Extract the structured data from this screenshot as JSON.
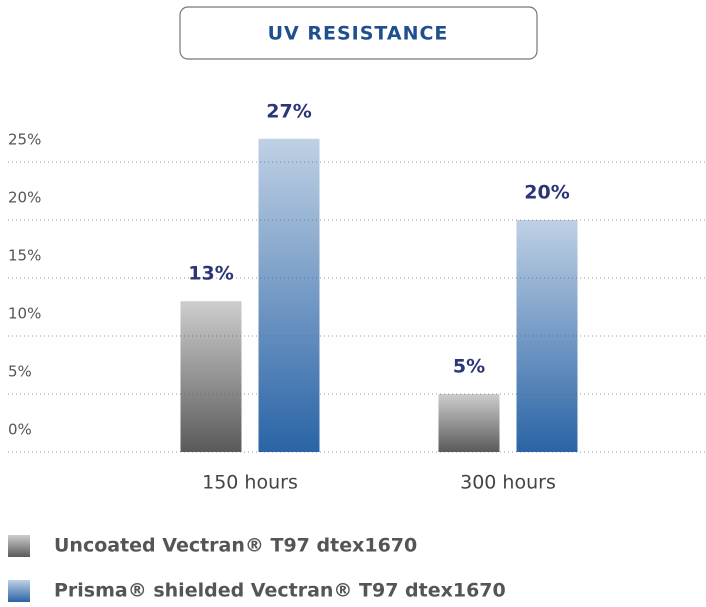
{
  "chart_data": {
    "type": "bar",
    "title": "UV RESISTANCE",
    "categories": [
      "150 hours",
      "300 hours"
    ],
    "series": [
      {
        "name": "Uncoated Vectran® T97 dtex1670",
        "color": "#5a5a5a",
        "values": [
          13,
          5
        ],
        "value_labels": [
          "13%",
          "5%"
        ]
      },
      {
        "name": "Prisma® shielded  Vectran® T97 dtex1670",
        "color": "#2a64a6",
        "values": [
          27,
          20
        ],
        "value_labels": [
          "27%",
          "20%"
        ]
      }
    ],
    "ylim": [
      0,
      30
    ],
    "yticks": [
      {
        "value": 0,
        "label": "0%"
      },
      {
        "value": 5,
        "label": "5%"
      },
      {
        "value": 10,
        "label": "10%"
      },
      {
        "value": 15,
        "label": "15%"
      },
      {
        "value": 20,
        "label": "20%"
      },
      {
        "value": 25,
        "label": "25%"
      }
    ],
    "grid": true
  }
}
